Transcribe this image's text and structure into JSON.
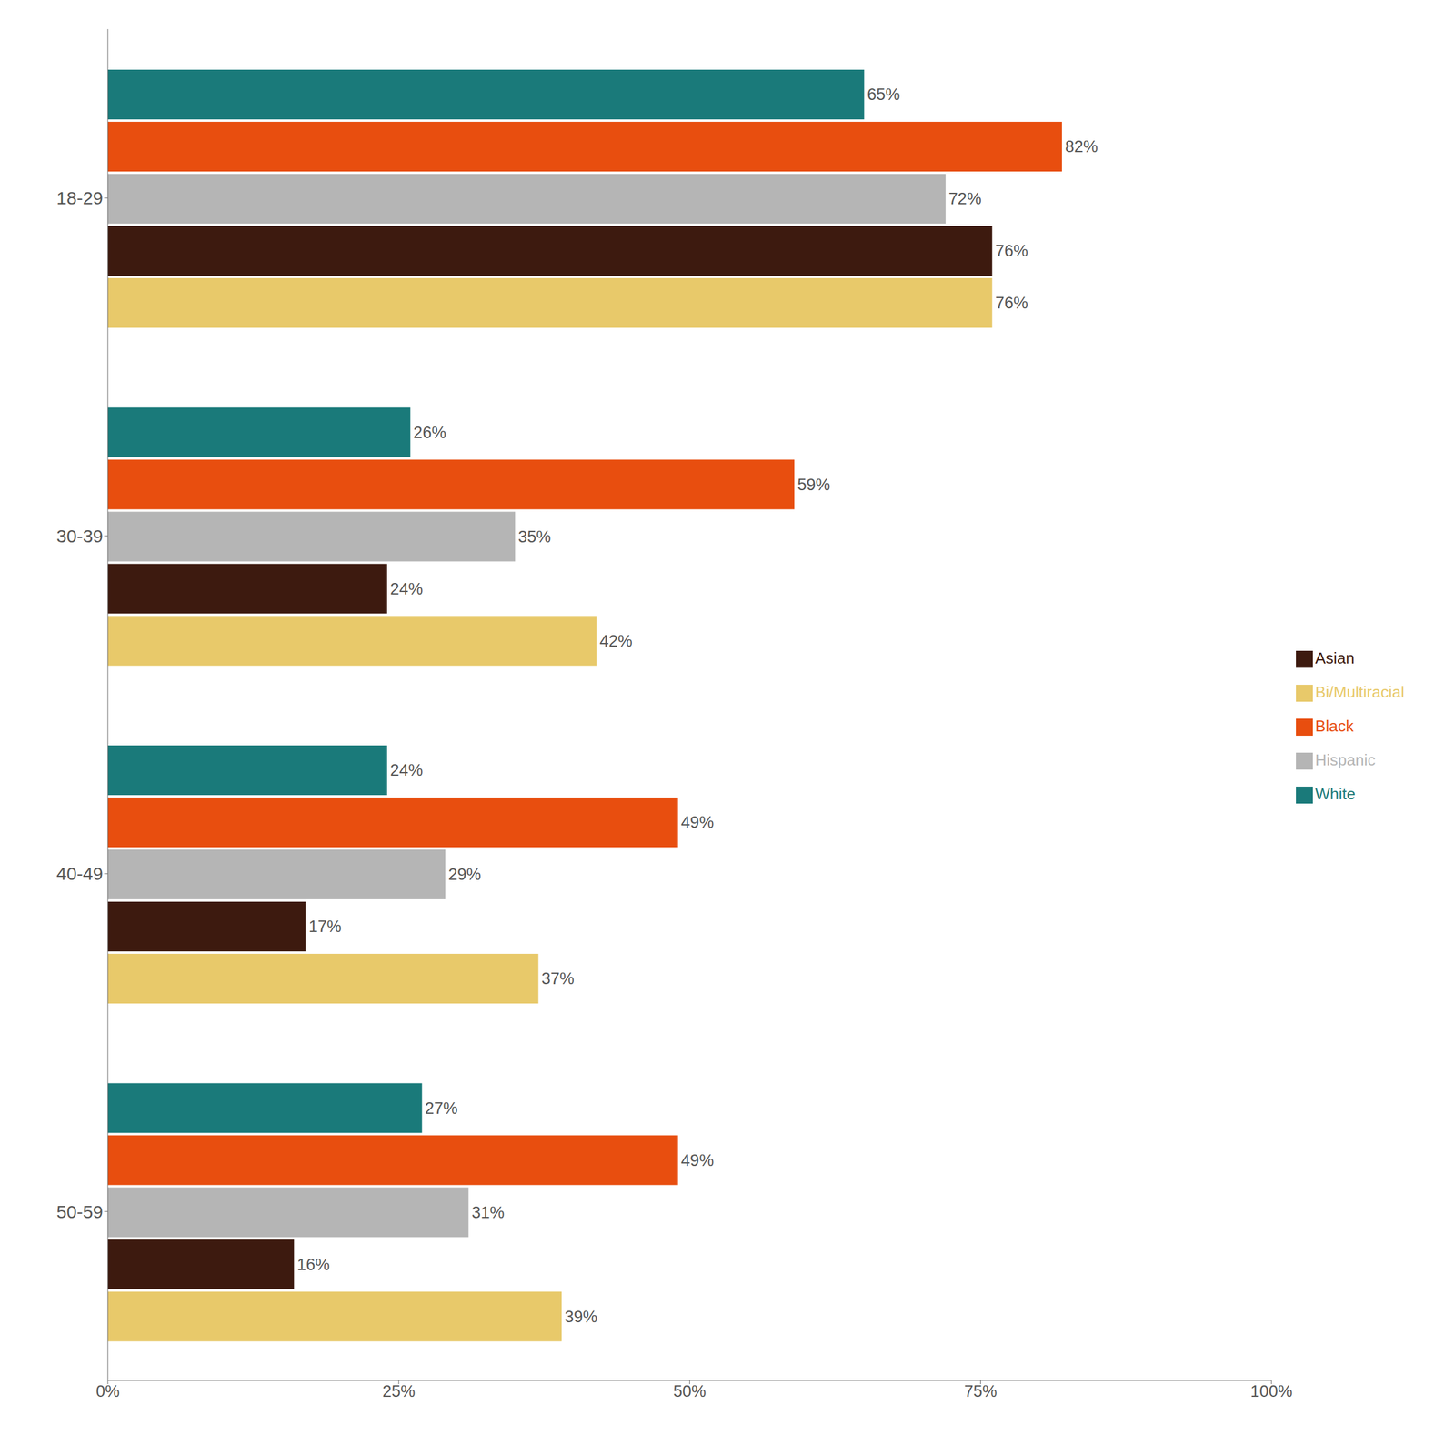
{
  "chart_data": {
    "type": "bar",
    "orientation": "horizontal",
    "categories": [
      "18-29",
      "30-39",
      "40-49",
      "50-59"
    ],
    "series": [
      {
        "name": "White",
        "color": "#1a7a7a",
        "values": [
          65,
          26,
          24,
          27
        ],
        "value_labels": [
          "65%",
          "26%",
          "24%",
          "27%"
        ]
      },
      {
        "name": "Black",
        "color": "#e84e0f",
        "values": [
          82,
          59,
          49,
          49
        ],
        "value_labels": [
          "82%",
          "59%",
          "49%",
          "49%"
        ]
      },
      {
        "name": "Hispanic",
        "color": "#b5b5b5",
        "values": [
          72,
          35,
          29,
          31
        ],
        "value_labels": [
          "72%",
          "35%",
          "29%",
          "31%"
        ]
      },
      {
        "name": "Asian",
        "color": "#3d1a0f",
        "values": [
          76,
          24,
          17,
          16
        ],
        "value_labels": [
          "76%",
          "24%",
          "17%",
          "16%"
        ]
      },
      {
        "name": "Bi/Multiracial",
        "color": "#e8c96a",
        "values": [
          76,
          42,
          37,
          39
        ],
        "value_labels": [
          "76%",
          "42%",
          "37%",
          "39%"
        ]
      }
    ],
    "xlim": [
      0,
      100
    ],
    "xticks": [
      {
        "value": 0,
        "label": "0%"
      },
      {
        "value": 25,
        "label": "25%"
      },
      {
        "value": 50,
        "label": "50%"
      },
      {
        "value": 75,
        "label": "75%"
      },
      {
        "value": 100,
        "label": "100%"
      }
    ],
    "data_labels": true,
    "legend": "right",
    "grid": false
  }
}
